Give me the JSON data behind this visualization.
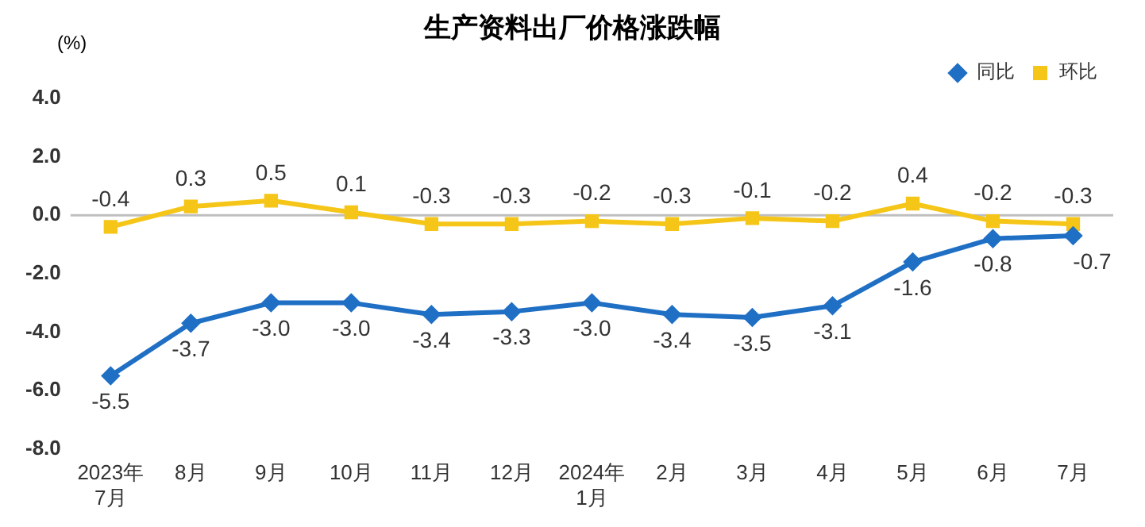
{
  "chart_data": {
    "type": "line",
    "title": "生产资料出厂价格涨跌幅",
    "ylabel": "(%)",
    "categories": [
      "2023年\n7月",
      "8月",
      "9月",
      "10月",
      "11月",
      "12月",
      "2024年\n1月",
      "2月",
      "3月",
      "4月",
      "5月",
      "6月",
      "7月"
    ],
    "series": [
      {
        "name": "同比",
        "color": "#1f6fc5",
        "marker": "diamond",
        "values": [
          -5.5,
          -3.7,
          -3.0,
          -3.0,
          -3.4,
          -3.3,
          -3.0,
          -3.4,
          -3.5,
          -3.1,
          -1.6,
          -0.8,
          -0.7
        ],
        "value_labels": [
          "-5.5",
          "-3.7",
          "-3.0",
          "-3.0",
          "-3.4",
          "-3.3",
          "-3.0",
          "-3.4",
          "-3.5",
          "-3.1",
          "-1.6",
          "-0.8",
          "-0.7"
        ]
      },
      {
        "name": "环比",
        "color": "#f5c518",
        "marker": "square",
        "values": [
          -0.4,
          0.3,
          0.5,
          0.1,
          -0.3,
          -0.3,
          -0.2,
          -0.3,
          -0.1,
          -0.2,
          0.4,
          -0.2,
          -0.3
        ],
        "value_labels": [
          "-0.4",
          "0.3",
          "0.5",
          "0.1",
          "-0.3",
          "-0.3",
          "-0.2",
          "-0.3",
          "-0.1",
          "-0.2",
          "0.4",
          "-0.2",
          "-0.3"
        ]
      }
    ],
    "ylim": [
      -8,
      4
    ],
    "yticks": [
      {
        "value": -8,
        "label": "-8.0"
      },
      {
        "value": -6,
        "label": "-6.0"
      },
      {
        "value": -4,
        "label": "-4.0"
      },
      {
        "value": -2,
        "label": "-2.0"
      },
      {
        "value": 0,
        "label": "0.0"
      },
      {
        "value": 2,
        "label": "2.0"
      },
      {
        "value": 4,
        "label": "4.0"
      }
    ],
    "ref_lines": [
      {
        "axis": "y",
        "value": 0,
        "color": "#bfbfbf"
      }
    ],
    "grid": false,
    "legend": "top right",
    "line_style": "solid"
  }
}
